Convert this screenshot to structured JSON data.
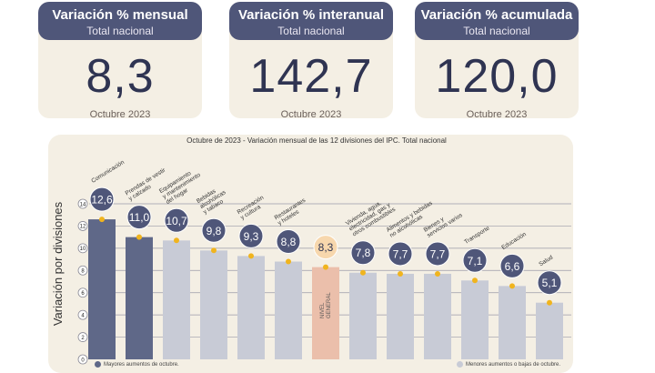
{
  "cards": [
    {
      "title": "Variación % mensual",
      "subtitle": "Total nacional",
      "value": "8,3",
      "date": "Octubre 2023"
    },
    {
      "title": "Variación % interanual",
      "subtitle": "Total nacional",
      "value": "142,7",
      "date": "Octubre 2023"
    },
    {
      "title": "Variación % acumulada",
      "subtitle": "Total nacional",
      "value": "120,0",
      "date": "Octubre 2023"
    }
  ],
  "legend": {
    "high": "Mayores aumentos de octubre.",
    "low": "Menores aumentos o bajas de octubre."
  },
  "colors": {
    "high": "#5f6888",
    "low": "#c8cbd6",
    "general": "#ebbfab",
    "marker": "#f0b41e",
    "panel": "#f4efe4",
    "header": "#4f5679"
  },
  "chart_data": {
    "type": "bar",
    "title": "Octubre de 2023 - Variación mensual de las 12 divisiones del IPC. Total nacional",
    "ylabel": "Variación por divisiones",
    "ylim": [
      0,
      14
    ],
    "yticks": [
      0,
      2,
      4,
      6,
      8,
      10,
      12,
      14
    ],
    "grid": true,
    "categories": [
      "Comunicación",
      "Prendas de vestir y calzado",
      "Equipamiento y mantenimiento del hogar",
      "Bebidas alcohólicas y tabaco",
      "Recreación y cultura",
      "Restaurantes y hoteles",
      "NIVEL GENERAL",
      "Vivienda, agua, electricidad, gas y otros combustibles",
      "Alimentos y bebidas no alcohólicas",
      "Bienes y servicios varios",
      "Transporte",
      "Educación",
      "Salud"
    ],
    "values": [
      12.6,
      11.0,
      10.7,
      9.8,
      9.3,
      8.8,
      8.3,
      7.8,
      7.7,
      7.7,
      7.1,
      6.6,
      5.1
    ],
    "value_labels": [
      "12,6",
      "11,0",
      "10,7",
      "9,8",
      "9,3",
      "8,8",
      "8,3",
      "7,8",
      "7,7",
      "7,7",
      "7,1",
      "6,6",
      "5,1"
    ],
    "groups": [
      "high",
      "high",
      "low",
      "low",
      "low",
      "low",
      "general",
      "low",
      "low",
      "low",
      "low",
      "low",
      "low"
    ],
    "category_label_lines": [
      [
        "Comunicación"
      ],
      [
        "Prendas de vestir",
        "y calzado"
      ],
      [
        "Equipamiento",
        "y mantenimiento",
        "del hogar"
      ],
      [
        "Bebidas",
        "alcohólicas",
        "y tabaco"
      ],
      [
        "Recreación",
        "y cultura"
      ],
      [
        "Restaurantes",
        "y hoteles"
      ],
      [
        "NIVEL",
        "GENERAL"
      ],
      [
        "Vivienda, agua,",
        "electricidad, gas y",
        "otros combustibles"
      ],
      [
        "Alimentos y bebidas",
        "no alcohólicas"
      ],
      [
        "Bienes y",
        "servicios varios"
      ],
      [
        "Transporte"
      ],
      [
        "Educación"
      ],
      [
        "Salud"
      ]
    ],
    "legend_position": "bottom"
  }
}
